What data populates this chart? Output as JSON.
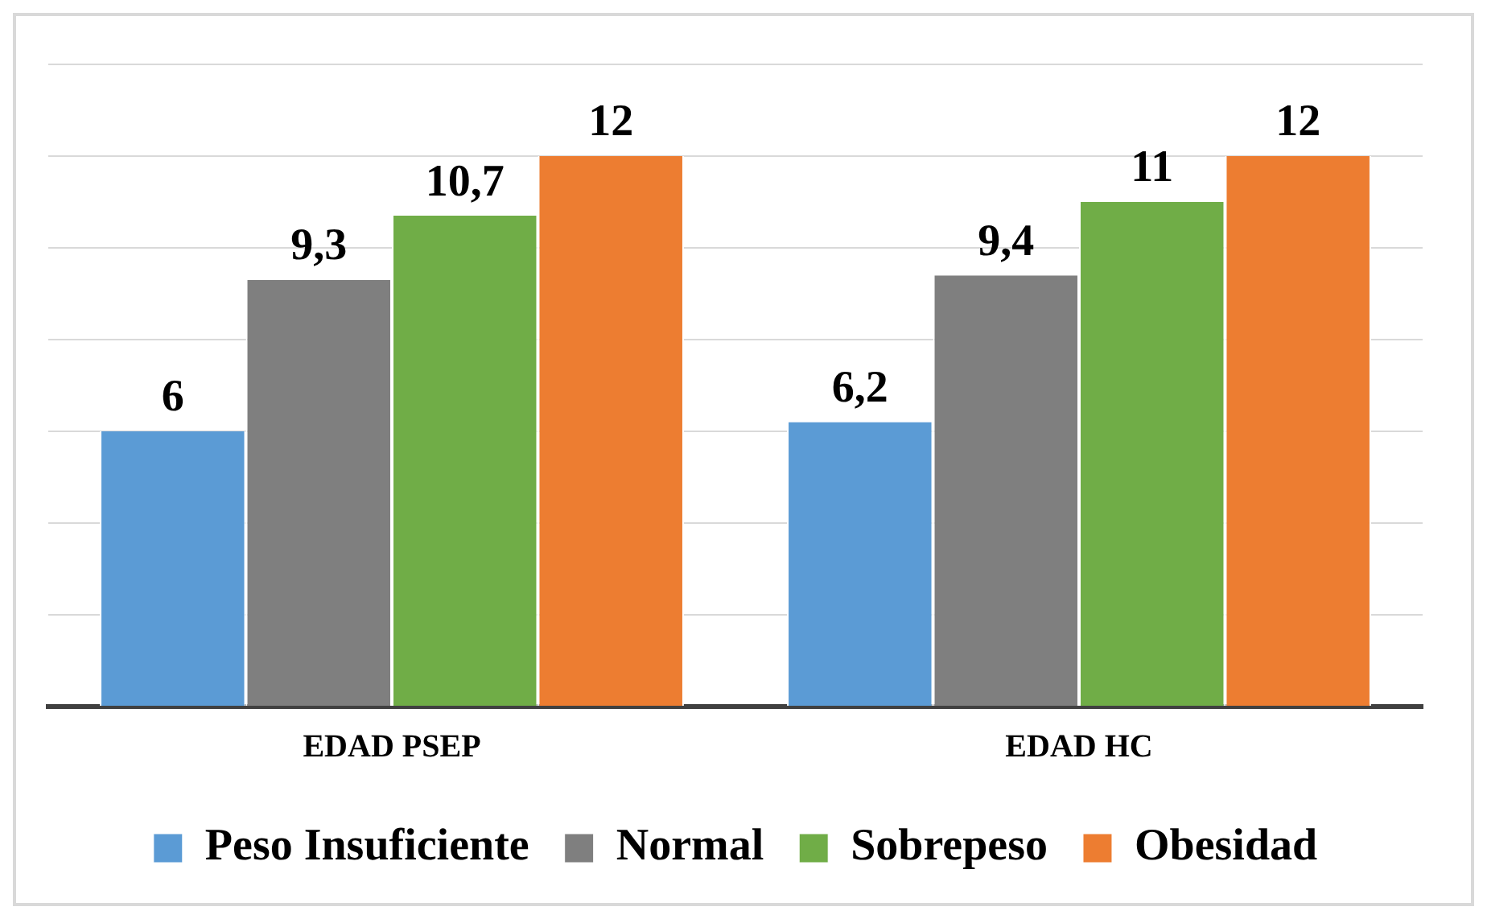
{
  "chart_data": {
    "type": "bar",
    "categories": [
      "EDAD PSEP",
      "EDAD HC"
    ],
    "series": [
      {
        "name": "Peso Insuficiente",
        "color": "#5b9bd5",
        "values": [
          6,
          6.2
        ],
        "value_labels": [
          "6",
          "6,2"
        ]
      },
      {
        "name": "Normal",
        "color": "#7f7f7f",
        "values": [
          9.3,
          9.4
        ],
        "value_labels": [
          "9,3",
          "9,4"
        ]
      },
      {
        "name": "Sobrepeso",
        "color": "#70ad47",
        "values": [
          10.7,
          11
        ],
        "value_labels": [
          "10,7",
          "11"
        ]
      },
      {
        "name": "Obesidad",
        "color": "#ed7d31",
        "values": [
          12,
          12
        ],
        "value_labels": [
          "12",
          "12"
        ]
      }
    ],
    "tick_labels": "x",
    "grid": "y",
    "legend": "bottom"
  }
}
